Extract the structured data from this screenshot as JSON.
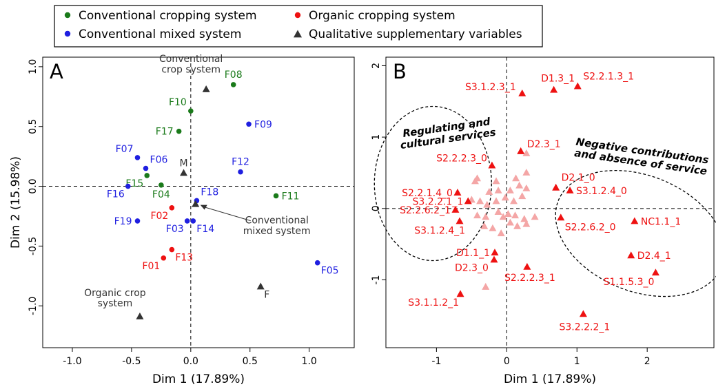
{
  "legend": {
    "items": [
      {
        "label": "Conventional cropping system",
        "color": "#1a7a1a",
        "shape": "circle"
      },
      {
        "label": "Conventional mixed system",
        "color": "#1f1fe0",
        "shape": "circle"
      },
      {
        "label": "Organic cropping system",
        "color": "#ee1111",
        "shape": "circle"
      },
      {
        "label": "Qualitative supplementary variables",
        "color": "#333333",
        "shape": "triangle"
      }
    ]
  },
  "colors": {
    "conventional_cropping": "#1a7a1a",
    "conventional_mixed": "#1f1fe0",
    "organic": "#ee1111",
    "supplementary": "#333333",
    "variable": "#ee1111",
    "variable_faint": "#f4a6a6"
  },
  "chart_data": [
    {
      "type": "scatter",
      "panel_label": "A",
      "xlabel": "Dim 1 (17.89%)",
      "ylabel": "Dim 2 (15.98%)",
      "xlim": [
        -1.25,
        1.38
      ],
      "ylim": [
        -1.35,
        1.08
      ],
      "xticks": [
        -1.0,
        -0.5,
        0.0,
        0.5,
        1.0
      ],
      "yticks": [
        -1.0,
        -0.5,
        0.0,
        0.5,
        1.0
      ],
      "xtick_labels": [
        "-1.0",
        "-0.5",
        "0.0",
        "0.5",
        "1.0"
      ],
      "ytick_labels": [
        "-1.0",
        "-0.5",
        "0.0",
        "0.5",
        "1.0"
      ],
      "grid": false,
      "reference_lines": {
        "x": 0,
        "y": 0
      },
      "series": [
        {
          "name": "Conventional cropping system",
          "color": "#1a7a1a",
          "shape": "circle",
          "points": [
            {
              "label": "F08",
              "x": 0.36,
              "y": 0.85,
              "label_pos": "above"
            },
            {
              "label": "F10",
              "x": 0.0,
              "y": 0.63,
              "label_pos": "above-left"
            },
            {
              "label": "F17",
              "x": -0.1,
              "y": 0.46,
              "label_pos": "left"
            },
            {
              "label": "F15",
              "x": -0.37,
              "y": 0.09,
              "label_pos": "below-left"
            },
            {
              "label": "F04",
              "x": -0.25,
              "y": 0.01,
              "label_pos": "below"
            },
            {
              "label": "F11",
              "x": 0.72,
              "y": -0.08,
              "label_pos": "right"
            }
          ]
        },
        {
          "name": "Conventional mixed system",
          "color": "#1f1fe0",
          "shape": "circle",
          "points": [
            {
              "label": "F09",
              "x": 0.49,
              "y": 0.52,
              "label_pos": "right"
            },
            {
              "label": "F07",
              "x": -0.45,
              "y": 0.24,
              "label_pos": "above-left"
            },
            {
              "label": "F06",
              "x": -0.38,
              "y": 0.15,
              "label_pos": "above-right"
            },
            {
              "label": "F12",
              "x": 0.42,
              "y": 0.12,
              "label_pos": "above"
            },
            {
              "label": "F16",
              "x": -0.53,
              "y": 0.0,
              "label_pos": "below-left"
            },
            {
              "label": "F18",
              "x": 0.05,
              "y": -0.12,
              "label_pos": "above-right"
            },
            {
              "label": "F19",
              "x": -0.45,
              "y": -0.29,
              "label_pos": "left"
            },
            {
              "label": "F03",
              "x": -0.03,
              "y": -0.29,
              "label_pos": "below-left"
            },
            {
              "label": "F14",
              "x": 0.02,
              "y": -0.29,
              "label_pos": "below-right"
            },
            {
              "label": "F05",
              "x": 1.07,
              "y": -0.64,
              "label_pos": "below-right"
            }
          ]
        },
        {
          "name": "Organic cropping system",
          "color": "#ee1111",
          "shape": "circle",
          "points": [
            {
              "label": "F02",
              "x": -0.16,
              "y": -0.18,
              "label_pos": "below-left"
            },
            {
              "label": "F13",
              "x": -0.16,
              "y": -0.53,
              "label_pos": "below-right"
            },
            {
              "label": "F01",
              "x": -0.23,
              "y": -0.6,
              "label_pos": "below-left"
            }
          ]
        },
        {
          "name": "Qualitative supplementary variables",
          "color": "#333333",
          "shape": "triangle",
          "points": [
            {
              "label": "Conventional\ncrop system",
              "x": 0.13,
              "y": 0.81,
              "label_pos": "above-left"
            },
            {
              "label": "M",
              "x": -0.06,
              "y": 0.11,
              "label_pos": "above"
            },
            {
              "label": "Conventional\nmixed system",
              "x": 0.04,
              "y": -0.15,
              "label_pos": "arrow"
            },
            {
              "label": "F",
              "x": 0.59,
              "y": -0.84,
              "label_pos": "below-right"
            },
            {
              "label": "Organic crop\nsystem",
              "x": -0.43,
              "y": -1.09,
              "label_pos": "above-left"
            }
          ]
        }
      ]
    },
    {
      "type": "scatter",
      "panel_label": "B",
      "xlabel": "Dim 1 (17.89%)",
      "ylabel": "",
      "xlim": [
        -1.72,
        2.95
      ],
      "ylim": [
        -1.95,
        2.12
      ],
      "xticks": [
        -1,
        0,
        1,
        2
      ],
      "yticks": [
        -1,
        0,
        1,
        2
      ],
      "xtick_labels": [
        "-1",
        "0",
        "1",
        "2"
      ],
      "ytick_labels": [
        "-1",
        "0",
        "1",
        "2"
      ],
      "grid": false,
      "reference_lines": {
        "x": 0,
        "y": 0
      },
      "annotations": [
        {
          "text": "Regulating and\ncultural services",
          "group": "left"
        },
        {
          "text": "Negative contributions\nand absence of service",
          "group": "right"
        }
      ],
      "series": [
        {
          "name": "Labelled modalities",
          "color": "#ee1111",
          "shape": "triangle",
          "points": [
            {
              "label": "S3.1.2.3_1",
              "x": 0.22,
              "y": 1.61
            },
            {
              "label": "D1.3_1",
              "x": 0.67,
              "y": 1.66
            },
            {
              "label": "S2.2.1.3_1",
              "x": 1.01,
              "y": 1.71
            },
            {
              "label": "D2.3_1",
              "x": 0.2,
              "y": 0.8
            },
            {
              "label": "S2.2.2.3_0",
              "x": -0.21,
              "y": 0.6
            },
            {
              "label": "D2.1_0",
              "x": 0.7,
              "y": 0.29
            },
            {
              "label": "S2.2.1.4_0",
              "x": -0.7,
              "y": 0.22
            },
            {
              "label": "S3.1.2.4_0",
              "x": 0.9,
              "y": 0.25
            },
            {
              "label": "S3.2.2.1_1",
              "x": -0.55,
              "y": 0.1
            },
            {
              "label": "S2.2.6.2_1",
              "x": -0.73,
              "y": -0.02
            },
            {
              "label": "S2.2.6.2_0",
              "x": 0.77,
              "y": -0.13
            },
            {
              "label": "NC1.1_1",
              "x": 1.82,
              "y": -0.18
            },
            {
              "label": "S3.1.2.4_1",
              "x": -0.67,
              "y": -0.18
            },
            {
              "label": "D1.1_1",
              "x": -0.17,
              "y": -0.62
            },
            {
              "label": "D2.4_1",
              "x": 1.77,
              "y": -0.66
            },
            {
              "label": "D2.3_0",
              "x": -0.18,
              "y": -0.72
            },
            {
              "label": "S2.2.2.3_1",
              "x": 0.29,
              "y": -0.82
            },
            {
              "label": "S1.1.5.3_0",
              "x": 2.12,
              "y": -0.9
            },
            {
              "label": "S3.1.1.2_1",
              "x": -0.66,
              "y": -1.2
            },
            {
              "label": "S3.2.2.2_1",
              "x": 1.09,
              "y": -1.48
            }
          ]
        },
        {
          "name": "Other modalities",
          "color": "#f4a6a6",
          "shape": "triangle",
          "points": [
            {
              "x": 0.28,
              "y": 0.77
            },
            {
              "x": -0.42,
              "y": 0.42
            },
            {
              "x": -0.45,
              "y": 0.38
            },
            {
              "x": -0.15,
              "y": 0.38
            },
            {
              "x": 0.13,
              "y": 0.42
            },
            {
              "x": 0.28,
              "y": 0.5
            },
            {
              "x": -0.25,
              "y": 0.23
            },
            {
              "x": -0.12,
              "y": 0.25
            },
            {
              "x": 0.05,
              "y": 0.25
            },
            {
              "x": 0.18,
              "y": 0.32
            },
            {
              "x": 0.28,
              "y": 0.28
            },
            {
              "x": -0.5,
              "y": 0.12
            },
            {
              "x": -0.38,
              "y": 0.1
            },
            {
              "x": -0.28,
              "y": 0.05
            },
            {
              "x": -0.15,
              "y": 0.1
            },
            {
              "x": -0.02,
              "y": 0.15
            },
            {
              "x": 0.1,
              "y": 0.1
            },
            {
              "x": 0.22,
              "y": 0.17
            },
            {
              "x": -0.42,
              "y": -0.1
            },
            {
              "x": -0.3,
              "y": -0.12
            },
            {
              "x": -0.12,
              "y": -0.05
            },
            {
              "x": -0.05,
              "y": -0.12
            },
            {
              "x": 0.02,
              "y": -0.08
            },
            {
              "x": 0.12,
              "y": -0.1
            },
            {
              "x": 0.25,
              "y": -0.15
            },
            {
              "x": 0.4,
              "y": -0.12
            },
            {
              "x": 0.05,
              "y": -0.2
            },
            {
              "x": -0.2,
              "y": -0.28
            },
            {
              "x": -0.08,
              "y": -0.35
            },
            {
              "x": 0.15,
              "y": -0.25
            },
            {
              "x": 0.28,
              "y": -0.22
            },
            {
              "x": -0.32,
              "y": -0.25
            },
            {
              "x": -0.3,
              "y": -1.1
            }
          ]
        }
      ]
    }
  ]
}
